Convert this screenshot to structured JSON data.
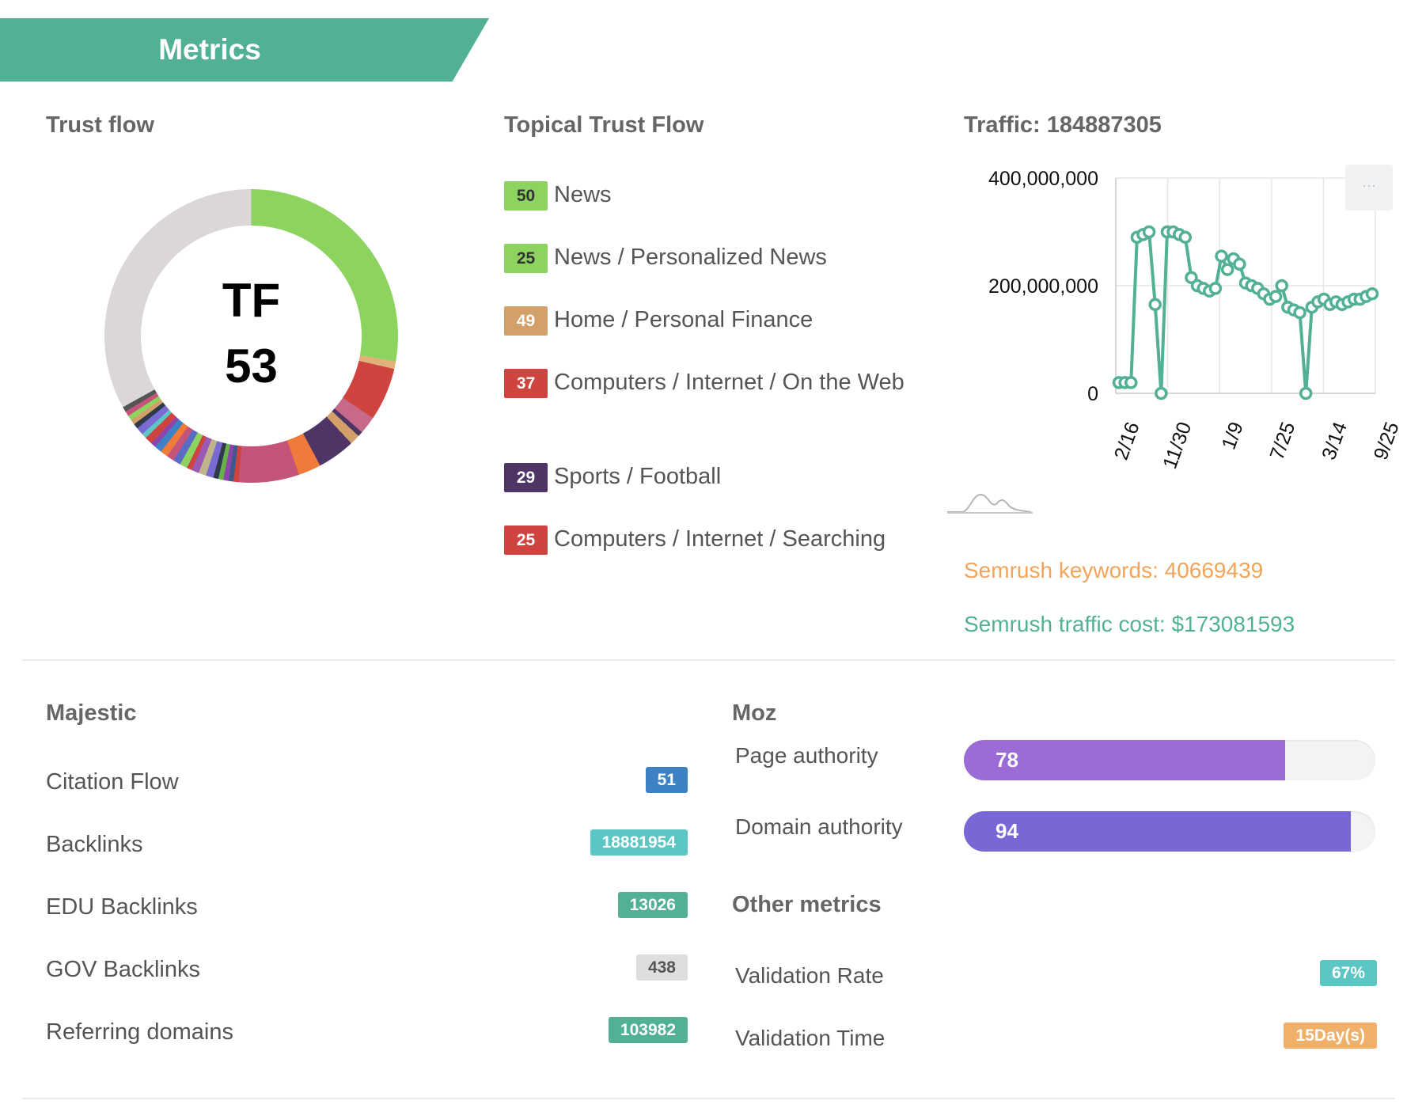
{
  "header": {
    "title": "Metrics"
  },
  "trust_flow": {
    "heading": "Trust flow",
    "label": "TF",
    "value": "53"
  },
  "topical_trust_flow": {
    "heading": "Topical Trust Flow",
    "items": [
      {
        "score": "50",
        "label": "News",
        "color": "#8dd35f"
      },
      {
        "score": "25",
        "label": "News / Personalized News",
        "color": "#8dd35f"
      },
      {
        "score": "49",
        "label": "Home / Personal Finance",
        "color": "#d4a06a"
      },
      {
        "score": "37",
        "label": "Computers / Internet / On the Web",
        "color": "#d0443f"
      },
      {
        "score": "29",
        "label": "Sports / Football",
        "color": "#4e3566"
      },
      {
        "score": "25",
        "label": "Computers / Internet / Searching",
        "color": "#d0443f"
      }
    ]
  },
  "traffic": {
    "heading": "Traffic: 184887305",
    "semrush_keywords": "Semrush keywords: 40669439",
    "semrush_traffic_cost": "Semrush traffic cost: $173081593",
    "keywords_color": "#f0a55a",
    "cost_color": "#52b095"
  },
  "chart_data": {
    "type": "line",
    "title": "",
    "ylim": [
      0,
      400000000
    ],
    "y_ticks": [
      "400,000,000",
      "200,000,000",
      "0"
    ],
    "x_ticks": [
      "2/16",
      "11/30",
      "1/9",
      "7/25",
      "3/14",
      "9/25"
    ],
    "grid": true,
    "series": [
      {
        "color": "#52b095",
        "values": [
          20000000,
          20000000,
          20000000,
          290000000,
          295000000,
          300000000,
          165000000,
          0,
          300000000,
          300000000,
          295000000,
          290000000,
          215000000,
          200000000,
          195000000,
          190000000,
          195000000,
          255000000,
          230000000,
          250000000,
          240000000,
          205000000,
          200000000,
          195000000,
          185000000,
          175000000,
          180000000,
          200000000,
          160000000,
          155000000,
          150000000,
          0,
          160000000,
          170000000,
          175000000,
          165000000,
          170000000,
          165000000,
          170000000,
          175000000,
          175000000,
          180000000,
          185000000
        ]
      }
    ]
  },
  "majestic": {
    "heading": "Majestic",
    "rows": [
      {
        "label": "Citation Flow",
        "value": "51",
        "color": "#3d82c4"
      },
      {
        "label": "Backlinks",
        "value": "18881954",
        "color": "#5bc6c4"
      },
      {
        "label": "EDU Backlinks",
        "value": "13026",
        "color": "#52b095"
      },
      {
        "label": "GOV Backlinks",
        "value": "438",
        "color": "#dcdee0"
      },
      {
        "label": "Referring domains",
        "value": "103982",
        "color": "#52b095"
      }
    ]
  },
  "moz": {
    "heading": "Moz",
    "page_authority": {
      "label": "Page authority",
      "value": "78",
      "fraction": 0.78,
      "color": "#9b6cd6"
    },
    "domain_authority": {
      "label": "Domain authority",
      "value": "94",
      "fraction": 0.94,
      "color": "#7a66d4"
    }
  },
  "other_metrics": {
    "heading": "Other metrics",
    "rows": [
      {
        "label": "Validation Rate",
        "value": "67%",
        "color": "#5bc6c4"
      },
      {
        "label": "Validation Time",
        "value": "15Day(s)",
        "color": "#f0b06a"
      }
    ]
  }
}
